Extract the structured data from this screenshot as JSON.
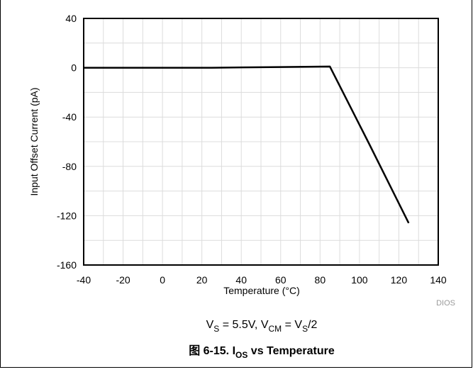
{
  "chart_data": {
    "type": "line",
    "xlabel": "Temperature (°C)",
    "ylabel": "Input Offset Current  (pA)",
    "xlim": [
      -40,
      140
    ],
    "ylim": [
      -160,
      40
    ],
    "x_ticks": [
      -40,
      -20,
      0,
      20,
      40,
      60,
      80,
      100,
      120,
      140
    ],
    "y_ticks": [
      40,
      0,
      -40,
      -80,
      -120,
      -160
    ],
    "grid": true,
    "series": [
      {
        "x": [
          -40,
          -20,
          0,
          25,
          40,
          60,
          85,
          105,
          125
        ],
        "y": [
          0,
          0,
          0,
          0,
          0.3,
          0.6,
          1,
          -62,
          -126
        ],
        "color": "#000000"
      }
    ],
    "source_label": "DIOS",
    "condition": {
      "vs_sym": "V",
      "vs_sub": "S",
      "vs_val": " = 5.5V, ",
      "vcm_sym": "V",
      "vcm_sub": "CM",
      "vcm_mid": " = V",
      "vcm_sub2": "S",
      "vcm_end": "/2"
    },
    "caption": {
      "prefix": "图 6-15. I",
      "sub": "OS",
      "suffix": " vs Temperature"
    }
  }
}
